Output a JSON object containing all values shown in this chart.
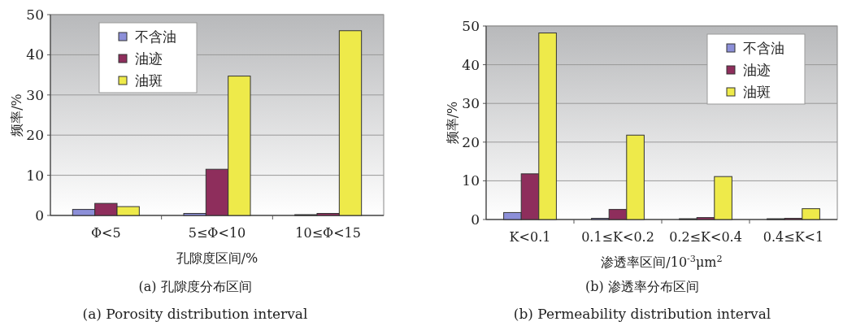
{
  "chart_data": [
    {
      "type": "bar",
      "title": "(a) 孔隙度分布区间",
      "subtitle": "(a) Porosity distribution interval",
      "xlabel": "孔隙度区间/%",
      "ylabel": "频率/%",
      "categories": [
        "Φ<5",
        "5≤Φ<10",
        "10≤Φ<15"
      ],
      "series": [
        {
          "name": "不含油",
          "color": "#8c8fd8",
          "values": [
            1.5,
            0.5,
            0.2
          ]
        },
        {
          "name": "油迹",
          "color": "#8e2e5c",
          "values": [
            3,
            11.5,
            0.5
          ]
        },
        {
          "name": "油斑",
          "color": "#eeea4a",
          "values": [
            2.2,
            34.7,
            46
          ]
        }
      ],
      "ylim": [
        0,
        50
      ],
      "yticks": [
        0,
        10,
        20,
        30,
        40,
        50
      ],
      "grid": "y",
      "legend": "top left"
    },
    {
      "type": "bar",
      "title": "(b) 渗透率分布区间",
      "subtitle": "(b) Permeability distribution interval",
      "xlabel": "渗透率区间/10$^{-3}$μm$^{2}$",
      "ylabel": "频率/%",
      "categories": [
        "K<0.1",
        "0.1≤K<0.2",
        "0.2≤K<0.4",
        "0.4≤K<1"
      ],
      "series": [
        {
          "name": "不含油",
          "color": "#8c8fd8",
          "values": [
            1.8,
            0.3,
            0.2,
            0.2
          ]
        },
        {
          "name": "油迹",
          "color": "#8e2e5c",
          "values": [
            11.8,
            2.6,
            0.5,
            0.3
          ]
        },
        {
          "name": "油斑",
          "color": "#eeea4a",
          "values": [
            48.2,
            21.8,
            11.1,
            2.8
          ]
        }
      ],
      "ylim": [
        0,
        50
      ],
      "yticks": [
        0,
        10,
        20,
        30,
        40,
        50
      ],
      "grid": "y",
      "legend": "top right"
    }
  ]
}
